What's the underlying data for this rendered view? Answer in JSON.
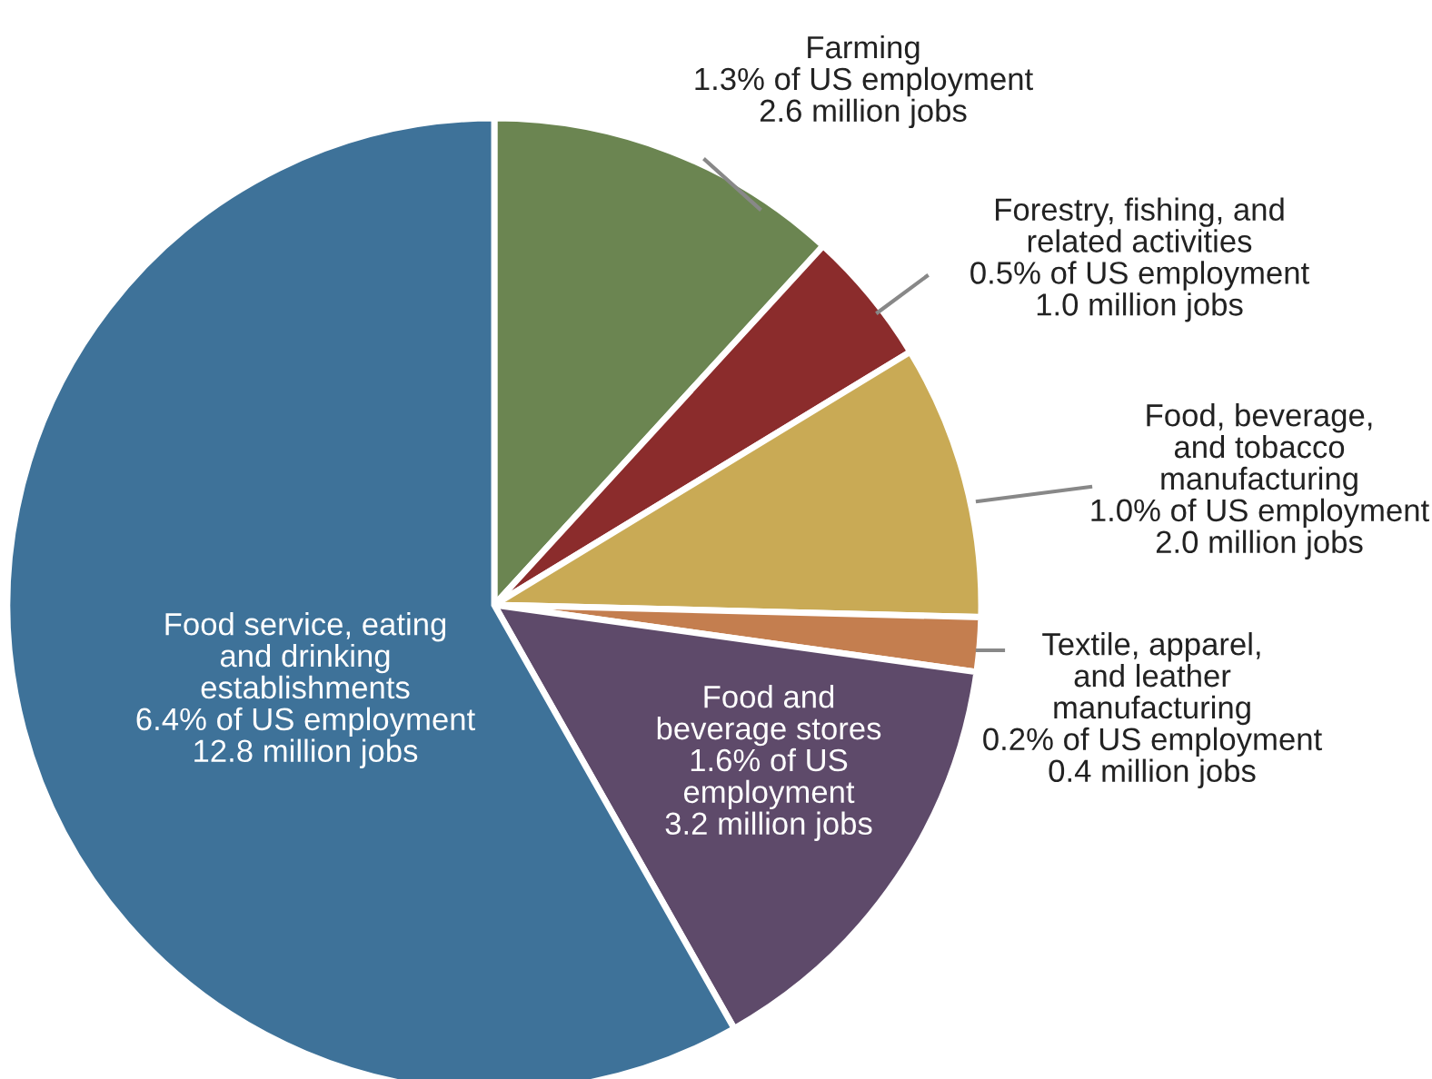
{
  "chart_data": {
    "type": "pie",
    "categories": [
      "Farming\n1.3% of US employment\n2.6 million jobs",
      "Forestry, fishing, and\nrelated activities\n0.5% of US employment\n1.0 million jobs",
      "Food, beverage,\nand tobacco\nmanufacturing\n1.0% of US employment\n2.0 million jobs",
      "Textile, apparel,\nand leather\nmanufacturing\n0.2% of US employment\n0.4 million jobs",
      "Food and\nbeverage stores\n1.6% of US\nemployment\n3.2 million jobs",
      "Food service, eating\nand drinking\nestablishments\n6.4% of US employment\n12.8 million jobs"
    ],
    "values": [
      11.8,
      4.5,
      9.1,
      1.8,
      14.6,
      58.2
    ],
    "colors": [
      "#6b8551",
      "#8b2c2c",
      "#c9aa55",
      "#c47e4f",
      "#5e4a6a",
      "#3e7299"
    ]
  }
}
